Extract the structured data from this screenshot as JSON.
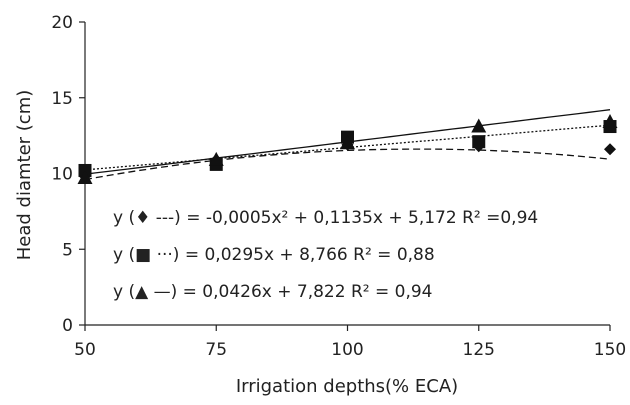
{
  "chart_data": {
    "type": "scatter",
    "xlabel": "Irrigation depths(% ECA)",
    "ylabel": "Head diamter (cm)",
    "xlim": [
      50,
      150
    ],
    "ylim": [
      0,
      20
    ],
    "x_ticks": [
      "50",
      "75",
      "100",
      "125",
      "150"
    ],
    "y_ticks": [
      "0",
      "5",
      "10",
      "15",
      "20"
    ],
    "x": [
      50,
      75,
      100,
      125,
      150
    ],
    "grid": false,
    "series": [
      {
        "marker": "diamond",
        "values": [
          9.8,
          10.9,
          11.9,
          11.8,
          11.6
        ],
        "fit": {
          "type": "poly2",
          "a": -0.0005,
          "b": 0.1135,
          "c": 5.172
        },
        "line_style": "dashed",
        "equation": {
          "prefix": "y (",
          "symbol": "♦",
          "dash": " ---)",
          "text": " = -0,0005x² + 0,1135x + 5,172  R² =0,94"
        }
      },
      {
        "marker": "square",
        "values": [
          10.2,
          10.6,
          12.4,
          12.1,
          13.1
        ],
        "fit": {
          "type": "linear",
          "slope": 0.0295,
          "intercept": 8.766
        },
        "line_style": "dotted",
        "equation": {
          "prefix": "y (",
          "symbol": "■",
          "dash": " ···)",
          "text": " = 0,0295x + 8,766 R² = 0,88"
        }
      },
      {
        "marker": "triangle",
        "values": [
          9.7,
          10.9,
          12.0,
          13.1,
          13.4
        ],
        "fit": {
          "type": "linear",
          "slope": 0.0426,
          "intercept": 7.822
        },
        "line_style": "solid",
        "equation": {
          "prefix": "y (",
          "symbol": "▲",
          "dash": " —)",
          "text": " = 0,0426x + 7,822 R² = 0,94"
        }
      }
    ]
  }
}
